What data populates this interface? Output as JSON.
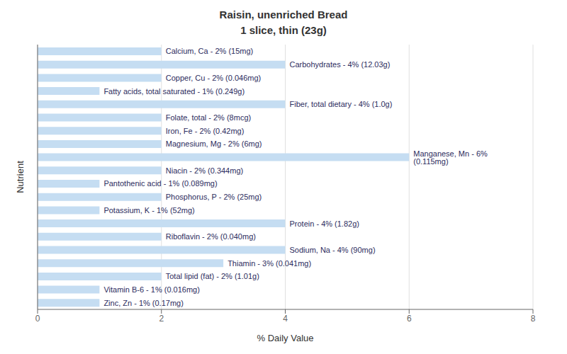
{
  "chart_data": {
    "type": "bar",
    "orientation": "horizontal",
    "title": "Raisin, unenriched Bread\n1 slice, thin (23g)",
    "x_label": "% Daily Value",
    "y_label": "Nutrient",
    "categories": [
      "Zinc, Zn - 1% (0.17mg)",
      "Vitamin B-6 - 1% (0.016mg)",
      "Total lipid (fat) - 2% (1.01g)",
      "Thiamin - 3% (0.041mg)",
      "Sodium, Na - 4% (90mg)",
      "Riboflavin - 2% (0.040mg)",
      "Protein - 4% (1.82g)",
      "Potassium, K - 1% (52mg)",
      "Phosphorus, P - 2% (25mg)",
      "Pantothenic acid - 1% (0.089mg)",
      "Niacin - 2% (0.344mg)",
      "Manganese, Mn - 6% (0.115mg)",
      "Magnesium, Mg - 2% (6mg)",
      "Iron, Fe - 2% (0.42mg)",
      "Folate, total - 2% (8mcg)",
      "Fiber, total dietary - 4% (1.0g)",
      "Fatty acids, total saturated - 1% (0.249g)",
      "Copper, Cu - 2% (0.046mg)",
      "Carbohydrates - 4% (12.03g)",
      "Calcium, Ca - 2% (15mg)"
    ],
    "values": [
      1,
      1,
      2,
      3,
      4,
      2,
      4,
      1,
      2,
      1,
      2,
      6,
      2,
      2,
      2,
      4,
      1,
      2,
      4,
      2
    ],
    "color": "#c5ddf2",
    "xlim": [
      0,
      8
    ],
    "xticks": [
      0,
      2,
      4,
      6,
      8
    ],
    "grid": true,
    "tick_labels": "x"
  }
}
